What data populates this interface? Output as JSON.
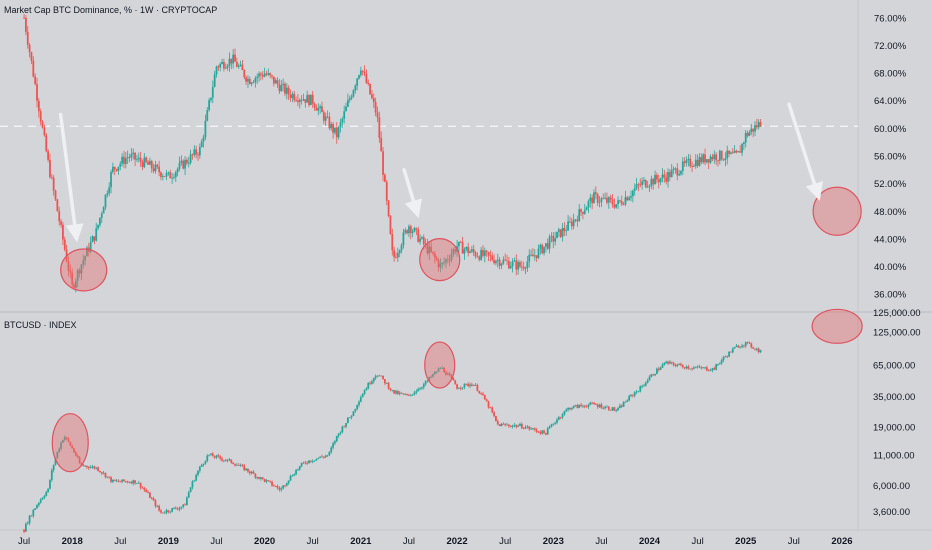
{
  "chart_data": [
    {
      "type": "candlestick",
      "title": "Market Cap BTC Dominance, % · 1W · CRYPTOCAP",
      "ylim": [
        34,
        78
      ],
      "y_ticks": [
        "76.00%",
        "72.00%",
        "68.00%",
        "64.00%",
        "60.00%",
        "56.00%",
        "52.00%",
        "48.00%",
        "44.00%",
        "40.00%",
        "36.00%"
      ],
      "reference_line": 60.3,
      "x": [
        "2017-07",
        "2017-10",
        "2018-01",
        "2018-02",
        "2018-04",
        "2018-06",
        "2018-08",
        "2018-10",
        "2019-01",
        "2019-03",
        "2019-05",
        "2019-07",
        "2019-09",
        "2019-11",
        "2020-01",
        "2020-04",
        "2020-07",
        "2020-10",
        "2021-01",
        "2021-03",
        "2021-05",
        "2021-07",
        "2021-09",
        "2021-11",
        "2022-01",
        "2022-03",
        "2022-06",
        "2022-09",
        "2022-12",
        "2023-03",
        "2023-06",
        "2023-09",
        "2023-12",
        "2024-03",
        "2024-06",
        "2024-09",
        "2024-12",
        "2025-01",
        "2025-03"
      ],
      "values": [
        76,
        55,
        37,
        40,
        45,
        54,
        56,
        55,
        53,
        55,
        57,
        69,
        70,
        67,
        68,
        65,
        64,
        59,
        69,
        62,
        41,
        46,
        43,
        40,
        43,
        42,
        41,
        40,
        43,
        46,
        50,
        49,
        52,
        53,
        55,
        56,
        56,
        59,
        61
      ],
      "colors": {
        "up": "#26a69a",
        "down": "#ef5350",
        "annotation": "#e57373"
      }
    },
    {
      "type": "candlestick",
      "title": "BTCUSD · INDEX",
      "scale": "log",
      "ylim": [
        2800,
        165000
      ],
      "y_ticks": [
        "125,000.00",
        "65,000.00",
        "35,000.00",
        "19,000.00",
        "11,000.00",
        "6,000.00",
        "3,600.00"
      ],
      "x": [
        "2017-07",
        "2017-10",
        "2017-12",
        "2018-02",
        "2018-04",
        "2018-06",
        "2018-09",
        "2018-12",
        "2019-03",
        "2019-06",
        "2019-09",
        "2019-12",
        "2020-03",
        "2020-06",
        "2020-09",
        "2020-12",
        "2021-03",
        "2021-05",
        "2021-07",
        "2021-09",
        "2021-11",
        "2022-01",
        "2022-03",
        "2022-06",
        "2022-09",
        "2022-12",
        "2023-03",
        "2023-06",
        "2023-09",
        "2023-12",
        "2024-03",
        "2024-06",
        "2024-09",
        "2024-12",
        "2025-01",
        "2025-03"
      ],
      "values": [
        2500,
        5500,
        16000,
        9000,
        8500,
        6500,
        6500,
        3500,
        4000,
        11000,
        9500,
        7200,
        5500,
        9500,
        11000,
        25000,
        55000,
        38000,
        35000,
        45000,
        62000,
        42000,
        45000,
        20000,
        19500,
        16800,
        28000,
        30000,
        26500,
        42000,
        68000,
        62000,
        60000,
        95000,
        100000,
        84000
      ],
      "colors": {
        "up": "#26a69a",
        "down": "#ef5350",
        "annotation": "#e57373"
      }
    }
  ],
  "x_axis": {
    "labels": [
      "Jul",
      "2018",
      "Jul",
      "2019",
      "Jul",
      "2020",
      "Jul",
      "2021",
      "Jul",
      "2022",
      "Jul",
      "2023",
      "Jul",
      "2024",
      "Jul",
      "2025",
      "Jul",
      "2026"
    ],
    "dates": [
      "2017-07",
      "2018-01",
      "2018-07",
      "2019-01",
      "2019-07",
      "2020-01",
      "2020-07",
      "2021-01",
      "2021-07",
      "2022-01",
      "2022-07",
      "2023-01",
      "2023-07",
      "2024-01",
      "2024-07",
      "2025-01",
      "2025-07",
      "2026-01"
    ]
  },
  "x_range": [
    "2017-04",
    "2026-03"
  ],
  "top_right_cut_label": "125,000.00"
}
